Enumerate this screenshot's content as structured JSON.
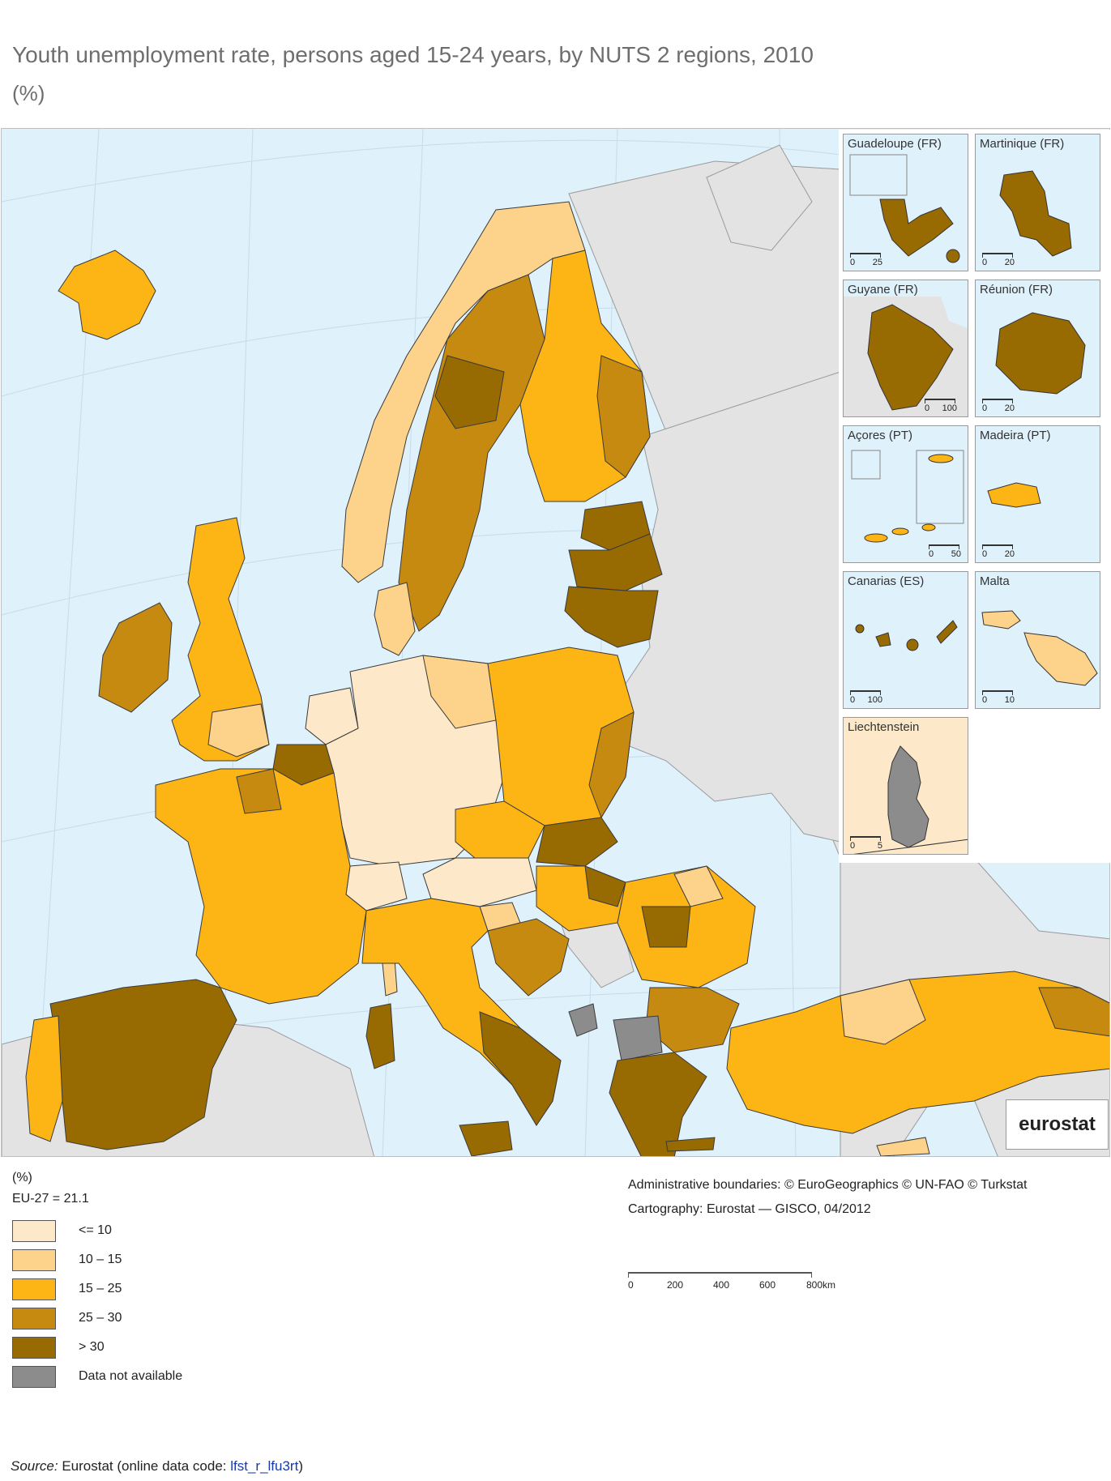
{
  "title": "Youth unemployment rate, persons aged 15-24 years, by NUTS 2 regions, 2010",
  "subtitle": "(%)",
  "colors": {
    "sea": "#dff1fb",
    "non_eu_land": "#e3e3e3",
    "class_le10": "#fde9c9",
    "class_10_15": "#fdd28a",
    "class_15_25": "#fdb516",
    "class_25_30": "#c68a10",
    "class_gt30": "#986a02",
    "na": "#8c8c8c",
    "border": "#3a3a3a"
  },
  "insets": [
    {
      "label": "Guadeloupe (FR)",
      "scale_max": "25",
      "class": "class_gt30"
    },
    {
      "label": "Martinique (FR)",
      "scale_max": "20",
      "class": "class_gt30"
    },
    {
      "label": "Guyane (FR)",
      "scale_max": "100",
      "class": "class_gt30"
    },
    {
      "label": "Réunion (FR)",
      "scale_max": "20",
      "class": "class_gt30"
    },
    {
      "label": "Açores (PT)",
      "scale_max": "50",
      "class": "class_15_25"
    },
    {
      "label": "Madeira (PT)",
      "scale_max": "20",
      "class": "class_15_25"
    },
    {
      "label": "Canarias (ES)",
      "scale_max": "100",
      "class": "class_gt30"
    },
    {
      "label": "Malta",
      "scale_max": "10",
      "class": "class_10_15"
    },
    {
      "label": "Liechtenstein",
      "scale_max": "5",
      "class": "na"
    }
  ],
  "scale_zero": "0",
  "logo_text": "eurostat",
  "legend": {
    "unit": "(%)",
    "eu_value": "EU-27 = 21.1",
    "items": [
      {
        "label": "<= 10",
        "color": "#fde9c9"
      },
      {
        "label": "10 – 15",
        "color": "#fdd28a"
      },
      {
        "label": "15 – 25",
        "color": "#fdb516"
      },
      {
        "label": "25 – 30",
        "color": "#c68a10"
      },
      {
        "label": "> 30",
        "color": "#986a02"
      },
      {
        "label": "Data not available",
        "color": "#8c8c8c"
      }
    ]
  },
  "credits": {
    "line1": "Administrative boundaries: © EuroGeographics © UN-FAO © Turkstat",
    "line2": "Cartography: Eurostat — GISCO, 04/2012"
  },
  "scale": {
    "labels": [
      "0",
      "200",
      "400",
      "600",
      "800km"
    ]
  },
  "source": {
    "prefix": "Source:",
    "text": " Eurostat (online data code: ",
    "code": "lfst_r_lfu3rt",
    "suffix": ")"
  },
  "regions": [
    {
      "name": "Iceland",
      "class": "class_15_25"
    },
    {
      "name": "Ireland",
      "class": "class_25_30"
    },
    {
      "name": "United Kingdom",
      "class": "class_15_25"
    },
    {
      "name": "Norway",
      "class": "class_10_15"
    },
    {
      "name": "Sweden",
      "class": "class_25_30"
    },
    {
      "name": "Finland",
      "class": "class_15_25"
    },
    {
      "name": "Estonia",
      "class": "class_gt30"
    },
    {
      "name": "Latvia",
      "class": "class_gt30"
    },
    {
      "name": "Lithuania",
      "class": "class_gt30"
    },
    {
      "name": "Denmark",
      "class": "class_10_15"
    },
    {
      "name": "Netherlands",
      "class": "class_le10"
    },
    {
      "name": "Belgium",
      "class": "class_25_30"
    },
    {
      "name": "Germany",
      "class": "class_le10"
    },
    {
      "name": "Poland",
      "class": "class_15_25"
    },
    {
      "name": "France",
      "class": "class_15_25"
    },
    {
      "name": "Spain",
      "class": "class_gt30"
    },
    {
      "name": "Portugal",
      "class": "class_15_25"
    },
    {
      "name": "Italy",
      "class": "class_15_25"
    },
    {
      "name": "Austria",
      "class": "class_le10"
    },
    {
      "name": "Czech Republic",
      "class": "class_15_25"
    },
    {
      "name": "Slovakia",
      "class": "class_gt30"
    },
    {
      "name": "Hungary",
      "class": "class_15_25"
    },
    {
      "name": "Romania",
      "class": "class_15_25"
    },
    {
      "name": "Bulgaria",
      "class": "class_25_30"
    },
    {
      "name": "Greece",
      "class": "class_gt30"
    },
    {
      "name": "Turkey",
      "class": "class_15_25"
    },
    {
      "name": "Croatia",
      "class": "class_25_30"
    },
    {
      "name": "Slovenia",
      "class": "class_10_15"
    },
    {
      "name": "Switzerland",
      "class": "class_le10"
    },
    {
      "name": "FYROM",
      "class": "na"
    },
    {
      "name": "Montenegro",
      "class": "na"
    },
    {
      "name": "Sardinia",
      "class": "class_gt30"
    },
    {
      "name": "Sicily",
      "class": "class_gt30"
    },
    {
      "name": "Corsica",
      "class": "class_10_15"
    },
    {
      "name": "Cyprus",
      "class": "class_10_15"
    }
  ]
}
